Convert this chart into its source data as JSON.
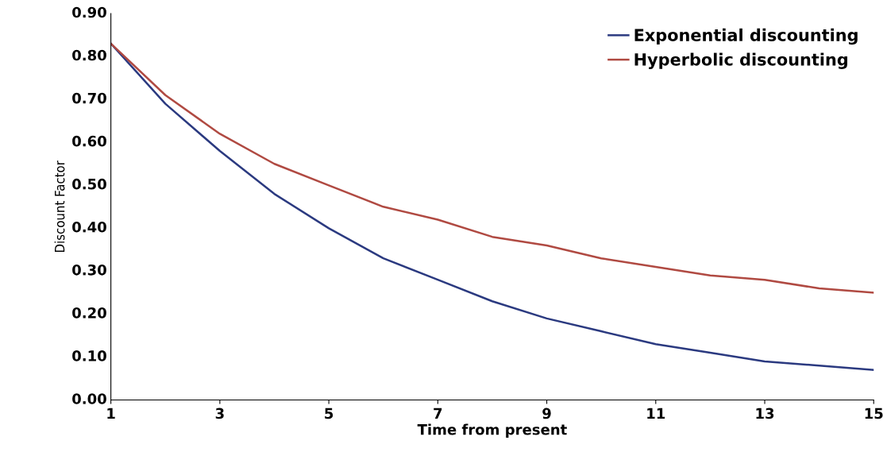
{
  "chart_data": {
    "type": "line",
    "xlabel": "Time from present",
    "ylabel": "Discount Factor",
    "x": [
      1,
      2,
      3,
      4,
      5,
      6,
      7,
      8,
      9,
      10,
      11,
      12,
      13,
      14,
      15
    ],
    "series": [
      {
        "name": "Exponential discounting",
        "color": "#2b3a80",
        "values": [
          0.83,
          0.69,
          0.58,
          0.48,
          0.4,
          0.33,
          0.28,
          0.23,
          0.19,
          0.16,
          0.13,
          0.11,
          0.09,
          0.08,
          0.07
        ]
      },
      {
        "name": "Hyperbolic discounting",
        "color": "#b04a42",
        "values": [
          0.83,
          0.71,
          0.62,
          0.55,
          0.5,
          0.45,
          0.42,
          0.38,
          0.36,
          0.33,
          0.31,
          0.29,
          0.28,
          0.26,
          0.25
        ]
      }
    ],
    "xlim": [
      1,
      15
    ],
    "xticks": [
      1,
      3,
      5,
      7,
      9,
      11,
      13,
      15
    ],
    "ylim": [
      0,
      0.9
    ],
    "yticks": [
      {
        "value": 0,
        "label": "0.00"
      },
      {
        "value": 0.1,
        "label": "0.10"
      },
      {
        "value": 0.2,
        "label": "0.20"
      },
      {
        "value": 0.3,
        "label": "0.30"
      },
      {
        "value": 0.4,
        "label": "0.40"
      },
      {
        "value": 0.5,
        "label": "0.50"
      },
      {
        "value": 0.6,
        "label": "0.60"
      },
      {
        "value": 0.7,
        "label": "0.70"
      },
      {
        "value": 0.8,
        "label": "0.80"
      },
      {
        "value": 0.9,
        "label": "0.90"
      }
    ],
    "grid": false,
    "legend": "top right",
    "marker": "none",
    "line_style": "solid"
  }
}
